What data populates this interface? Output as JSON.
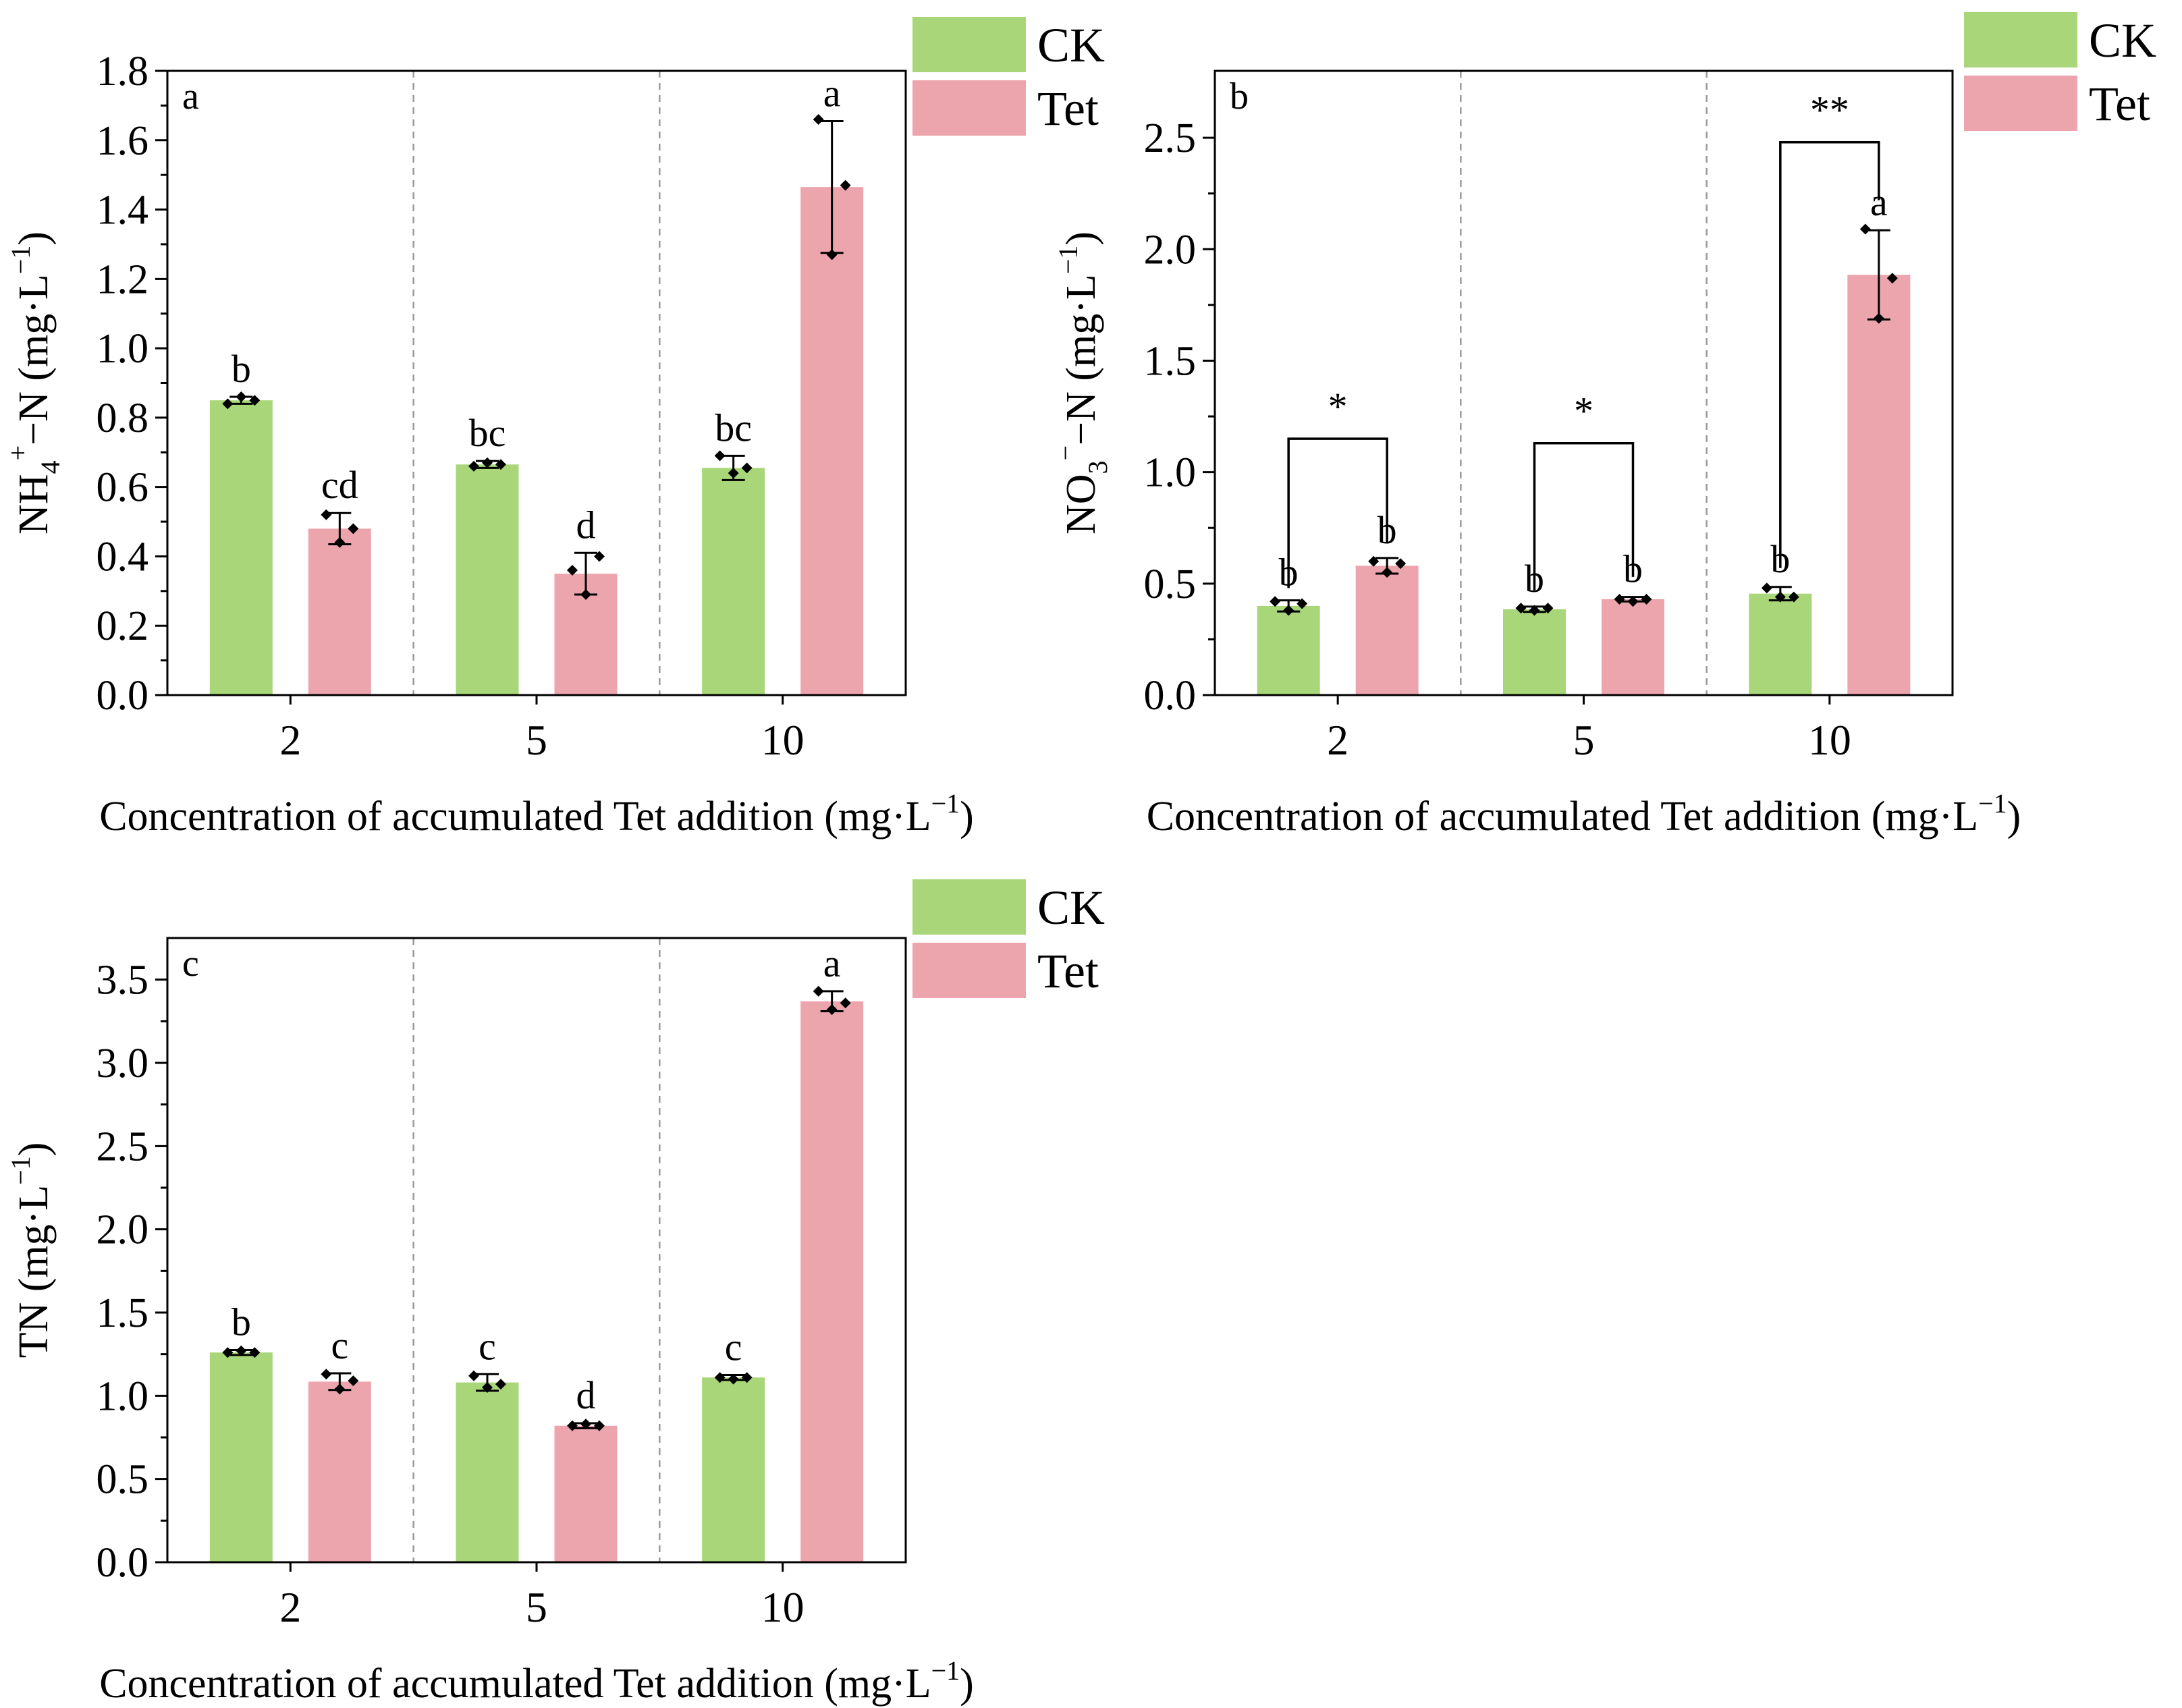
{
  "colors": {
    "CK": "#a8d679",
    "Tet": "#eda5ad",
    "axis": "#000000",
    "divider": "#9a9a9a"
  },
  "legend": {
    "ck_label": "CK",
    "tet_label": "Tet"
  },
  "x_axis_title": {
    "main": "Concentration of accumulated Tet addition (mg·L",
    "sup": "−1",
    "close": ")"
  },
  "panels": [
    {
      "key": "a",
      "tag": "a",
      "y_title": {
        "p1": "NH",
        "sub": "4",
        "sup": "+",
        "p2": "−N (mg·L",
        "sup2": "−1",
        "close": ")"
      },
      "significance": []
    },
    {
      "key": "b",
      "tag": "b",
      "y_title": {
        "p1": "NO",
        "sub": "3",
        "sup": "−",
        "p2": "−N (mg·L",
        "sup2": "−1",
        "close": ")"
      },
      "significance": [
        {
          "group": 0,
          "label": "*",
          "bottom_ck": 0.48,
          "bottom_tet": 0.68,
          "top": 1.15
        },
        {
          "group": 1,
          "label": "*",
          "bottom_ck": 0.47,
          "bottom_tet": 0.53,
          "top": 1.13
        },
        {
          "group": 2,
          "label": "**",
          "bottom_ck": 0.57,
          "bottom_tet": 2.22,
          "top": 2.48
        }
      ]
    },
    {
      "key": "c",
      "tag": "c",
      "y_title": {
        "p1": "TN (mg·L",
        "sup": "−1",
        "close": ")"
      },
      "significance": []
    }
  ],
  "chart_data": [
    {
      "panel": "a",
      "type": "bar",
      "title": "",
      "xlabel": "Concentration of accumulated Tet addition (mg·L−1)",
      "ylabel": "NH4+−N (mg·L−1)",
      "categories": [
        "2",
        "5",
        "10"
      ],
      "ylim": [
        0,
        1.8
      ],
      "yticks": [
        "0.0",
        "0.2",
        "0.4",
        "0.6",
        "0.8",
        "1.0",
        "1.2",
        "1.4",
        "1.6",
        "1.8"
      ],
      "series": [
        {
          "name": "CK",
          "values": [
            0.85,
            0.665,
            0.655
          ],
          "err": [
            0.01,
            0.01,
            0.035
          ],
          "letters": [
            "b",
            "bc",
            "bc"
          ],
          "points": [
            [
              0.84,
              0.86,
              0.85
            ],
            [
              0.66,
              0.67,
              0.665
            ],
            [
              0.69,
              0.64,
              0.655
            ]
          ]
        },
        {
          "name": "Tet",
          "values": [
            0.48,
            0.35,
            1.465
          ],
          "err": [
            0.045,
            0.06,
            0.19
          ],
          "letters": [
            "cd",
            "d",
            "a"
          ],
          "points": [
            [
              0.52,
              0.44,
              0.48
            ],
            [
              0.36,
              0.29,
              0.4
            ],
            [
              1.66,
              1.27,
              1.47
            ]
          ]
        }
      ],
      "legend_position": "top-right outside"
    },
    {
      "panel": "b",
      "type": "bar",
      "title": "",
      "xlabel": "Concentration of accumulated Tet addition (mg·L−1)",
      "ylabel": "NO3−−N (mg·L−1)",
      "categories": [
        "2",
        "5",
        "10"
      ],
      "ylim": [
        0,
        2.8
      ],
      "yticks": [
        "0.0",
        "0.5",
        "1.0",
        "1.5",
        "2.0",
        "2.5"
      ],
      "series": [
        {
          "name": "CK",
          "values": [
            0.4,
            0.385,
            0.455
          ],
          "err": [
            0.025,
            0.012,
            0.03
          ],
          "letters": [
            "b",
            "b",
            "b"
          ],
          "points": [
            [
              0.42,
              0.38,
              0.41
            ],
            [
              0.39,
              0.38,
              0.39
            ],
            [
              0.48,
              0.44,
              0.44
            ]
          ]
        },
        {
          "name": "Tet",
          "values": [
            0.58,
            0.43,
            1.885
          ],
          "err": [
            0.035,
            0.01,
            0.2
          ],
          "letters": [
            "b",
            "b",
            "a"
          ],
          "points": [
            [
              0.6,
              0.55,
              0.59
            ],
            [
              0.43,
              0.42,
              0.43
            ],
            [
              2.09,
              1.69,
              1.87
            ]
          ]
        }
      ],
      "legend_position": "top-right outside"
    },
    {
      "panel": "c",
      "type": "bar",
      "title": "",
      "xlabel": "Concentration of accumulated Tet addition (mg·L−1)",
      "ylabel": "TN (mg·L−1)",
      "categories": [
        "2",
        "5",
        "10"
      ],
      "ylim": [
        0,
        3.75
      ],
      "yticks": [
        "0.0",
        "0.5",
        "1.0",
        "1.5",
        "2.0",
        "2.5",
        "3.0",
        "3.5"
      ],
      "series": [
        {
          "name": "CK",
          "values": [
            1.26,
            1.08,
            1.11
          ],
          "err": [
            0.015,
            0.05,
            0.015
          ],
          "letters": [
            "b",
            "c",
            "c"
          ],
          "points": [
            [
              1.26,
              1.27,
              1.26
            ],
            [
              1.12,
              1.05,
              1.07
            ],
            [
              1.11,
              1.1,
              1.11
            ]
          ]
        },
        {
          "name": "Tet",
          "values": [
            1.085,
            0.82,
            3.37
          ],
          "err": [
            0.05,
            0.015,
            0.06
          ],
          "letters": [
            "c",
            "d",
            "a"
          ],
          "points": [
            [
              1.13,
              1.04,
              1.09
            ],
            [
              0.82,
              0.83,
              0.82
            ],
            [
              3.43,
              3.32,
              3.36
            ]
          ]
        }
      ],
      "legend_position": "top-right outside"
    }
  ]
}
